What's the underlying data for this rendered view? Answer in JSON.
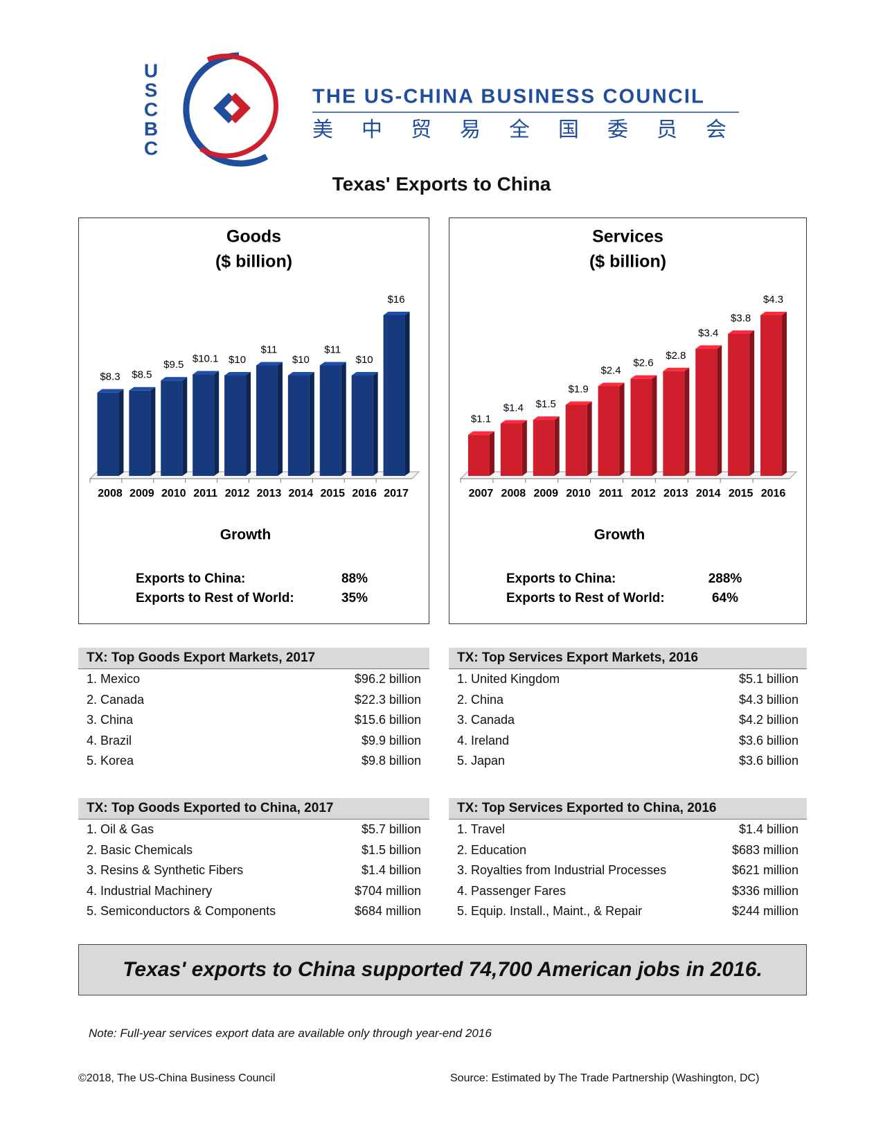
{
  "header": {
    "logo_letters": [
      "U",
      "S",
      "C",
      "B",
      "C"
    ],
    "org_name": "THE US-CHINA BUSINESS COUNCIL",
    "org_name_chinese": "美中贸易全国委员会"
  },
  "title": "Texas' Exports to China",
  "chart_data": [
    {
      "type": "bar",
      "title": "Goods",
      "subtitle": "($ billion)",
      "color": "#173a7e",
      "categories": [
        "2008",
        "2009",
        "2010",
        "2011",
        "2012",
        "2013",
        "2014",
        "2015",
        "2016",
        "2017"
      ],
      "values": [
        8.3,
        8.5,
        9.5,
        10.1,
        10,
        11,
        10,
        11,
        10,
        16
      ],
      "value_labels": [
        "$8.3",
        "$8.5",
        "$9.5",
        "$10.1",
        "$10",
        "$11",
        "$10",
        "$11",
        "$10",
        "$16"
      ]
    },
    {
      "type": "bar",
      "title": "Services",
      "subtitle": "($ billion)",
      "color": "#d01f2c",
      "categories": [
        "2007",
        "2008",
        "2009",
        "2010",
        "2011",
        "2012",
        "2013",
        "2014",
        "2015",
        "2016"
      ],
      "values": [
        1.1,
        1.4,
        1.5,
        1.9,
        2.4,
        2.6,
        2.8,
        3.4,
        3.8,
        4.3
      ],
      "value_labels": [
        "$1.1",
        "$1.4",
        "$1.5",
        "$1.9",
        "$2.4",
        "$2.6",
        "$2.8",
        "$3.4",
        "$3.8",
        "$4.3"
      ]
    }
  ],
  "growth": [
    {
      "heading": "Growth",
      "rows": [
        [
          "Exports to China:",
          "88%"
        ],
        [
          "Exports to Rest of World:",
          "35%"
        ]
      ]
    },
    {
      "heading": "Growth",
      "rows": [
        [
          "Exports to China:",
          "288%"
        ],
        [
          "Exports to Rest of World:",
          "64%"
        ]
      ]
    }
  ],
  "tables": [
    {
      "title": "TX: Top Goods Export Markets, 2017",
      "rows": [
        [
          "1. Mexico",
          "$96.2 billion"
        ],
        [
          "2. Canada",
          "$22.3 billion"
        ],
        [
          "3. China",
          "$15.6 billion"
        ],
        [
          "4. Brazil",
          "$9.9 billion"
        ],
        [
          "5. Korea",
          "$9.8 billion"
        ]
      ]
    },
    {
      "title": "TX: Top Services Export Markets, 2016",
      "rows": [
        [
          "1. United Kingdom",
          "$5.1 billion"
        ],
        [
          "2. China",
          "$4.3 billion"
        ],
        [
          "3. Canada",
          "$4.2 billion"
        ],
        [
          "4. Ireland",
          "$3.6 billion"
        ],
        [
          "5. Japan",
          "$3.6 billion"
        ]
      ]
    },
    {
      "title": "TX: Top Goods Exported to China, 2017",
      "rows": [
        [
          "1. Oil & Gas",
          "$5.7 billion"
        ],
        [
          "2. Basic Chemicals",
          "$1.5 billion"
        ],
        [
          "3. Resins & Synthetic Fibers",
          "$1.4 billion"
        ],
        [
          "4. Industrial Machinery",
          "$704 million"
        ],
        [
          "5. Semiconductors & Components",
          "$684 million"
        ]
      ]
    },
    {
      "title": "TX: Top Services Exported to China, 2016",
      "rows": [
        [
          "1. Travel",
          "$1.4 billion"
        ],
        [
          "2. Education",
          "$683 million"
        ],
        [
          "3. Royalties from Industrial Processes",
          "$621 million"
        ],
        [
          "4. Passenger Fares",
          "$336 million"
        ],
        [
          "5. Equip. Install., Maint., & Repair",
          "$244 million"
        ]
      ]
    }
  ],
  "banner": "Texas' exports to China supported 74,700 American jobs in 2016.",
  "note": "Note: Full-year services export data are available only through year-end 2016",
  "footer": {
    "copyright": "©2018, The US-China Business Council",
    "source": "Source: Estimated by The Trade Partnership (Washington, DC)"
  }
}
